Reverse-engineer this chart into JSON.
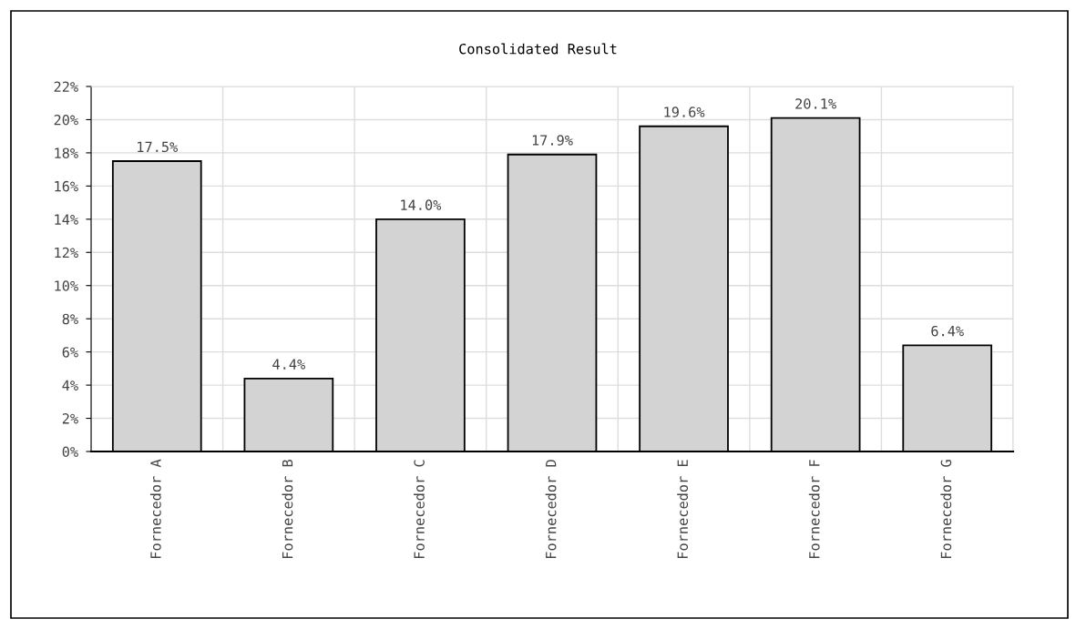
{
  "chart_data": {
    "type": "bar",
    "title": "Consolidated Result",
    "categories": [
      "Fornecedor A",
      "Fornecedor B",
      "Fornecedor C",
      "Fornecedor D",
      "Fornecedor E",
      "Fornecedor F",
      "Fornecedor G"
    ],
    "values": [
      17.5,
      4.4,
      14.0,
      17.9,
      19.6,
      20.1,
      6.4
    ],
    "value_labels": [
      "17.5%",
      "4.4%",
      "14.0%",
      "17.9%",
      "19.6%",
      "20.1%",
      "6.4%"
    ],
    "color": "#d3d3d3",
    "ylim": [
      0,
      22
    ],
    "yticks": [
      {
        "value": 0,
        "label": "0%"
      },
      {
        "value": 2,
        "label": "2%"
      },
      {
        "value": 4,
        "label": "4%"
      },
      {
        "value": 6,
        "label": "6%"
      },
      {
        "value": 8,
        "label": "8%"
      },
      {
        "value": 10,
        "label": "10%"
      },
      {
        "value": 12,
        "label": "12%"
      },
      {
        "value": 14,
        "label": "14%"
      },
      {
        "value": 16,
        "label": "16%"
      },
      {
        "value": 18,
        "label": "18%"
      },
      {
        "value": 20,
        "label": "20%"
      },
      {
        "value": 22,
        "label": "22%"
      }
    ],
    "grid": true
  }
}
